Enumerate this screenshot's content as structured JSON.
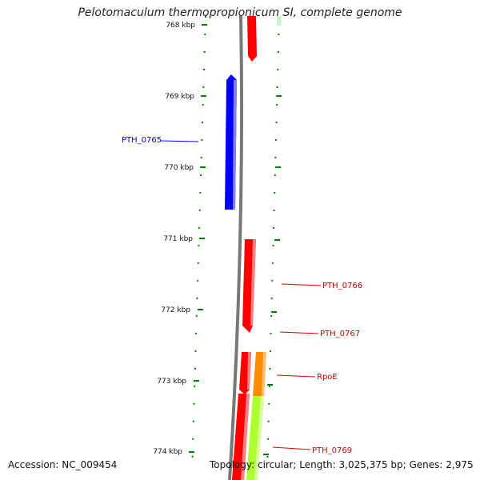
{
  "title": "Pelotomaculum thermopropionicum SI, complete genome",
  "accession": "Accession: NC_009454",
  "topology": "Topology: circular; Length: 3,025,375 bp; Genes: 2,975",
  "ticks": [
    "768 kbp",
    "769 kbp",
    "770 kbp",
    "771 kbp",
    "772 kbp",
    "773 kbp",
    "774 kbp"
  ],
  "genes": [
    {
      "label": "PTH_0765",
      "color": "#0000ff",
      "strand": "reverse"
    },
    {
      "label": "PTH_0766",
      "color": "#e00000",
      "strand": "forward"
    },
    {
      "label": "PTH_0767",
      "color": "#e00000",
      "strand": "forward"
    },
    {
      "label": "RpoE",
      "color": "#e00000",
      "strand": "forward"
    },
    {
      "label": "PTH_0769",
      "color": "#e00000",
      "strand": "forward"
    }
  ],
  "colors": {
    "backbone": "#808080",
    "tick": "#008000",
    "forward_gene": "#ff0000",
    "reverse_gene": "#0000ff",
    "orange_feature": "#ff8c00",
    "lime_feature": "#adff2f"
  }
}
